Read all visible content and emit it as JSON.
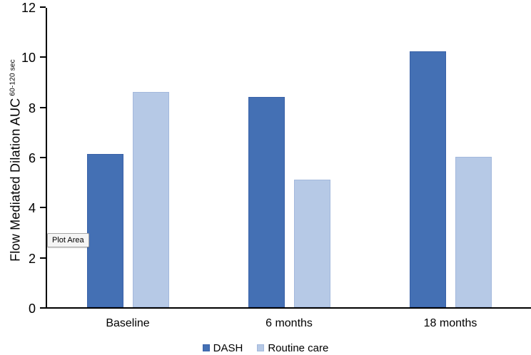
{
  "chart_data": {
    "type": "bar",
    "title": "",
    "categories": [
      "Baseline",
      "6 months",
      "18 months"
    ],
    "series": [
      {
        "name": "DASH",
        "color": "#4470B4",
        "border_color": "#3A62A8",
        "values": [
          6.1,
          8.4,
          10.2
        ]
      },
      {
        "name": "Routine care",
        "color": "#B6C9E6",
        "border_color": "#A3B8DC",
        "values": [
          8.6,
          5.1,
          6.0
        ]
      }
    ],
    "xlabel": "",
    "ylabel": "Flow Mediated Dilation AUC",
    "ylabel_superscript": "60-120 sec",
    "ylim": [
      0,
      12
    ],
    "yticks": [
      0,
      2,
      4,
      6,
      8,
      10,
      12
    ],
    "grid": false,
    "legend_position": "bottom"
  },
  "overlay": {
    "plot_area_label": "Plot Area"
  },
  "colors": {
    "axis": "#000000",
    "text": "#000000",
    "background": "#FFFFFF",
    "tooltip_bg": "#F5F5F5",
    "tooltip_border": "#A6A6A6"
  }
}
